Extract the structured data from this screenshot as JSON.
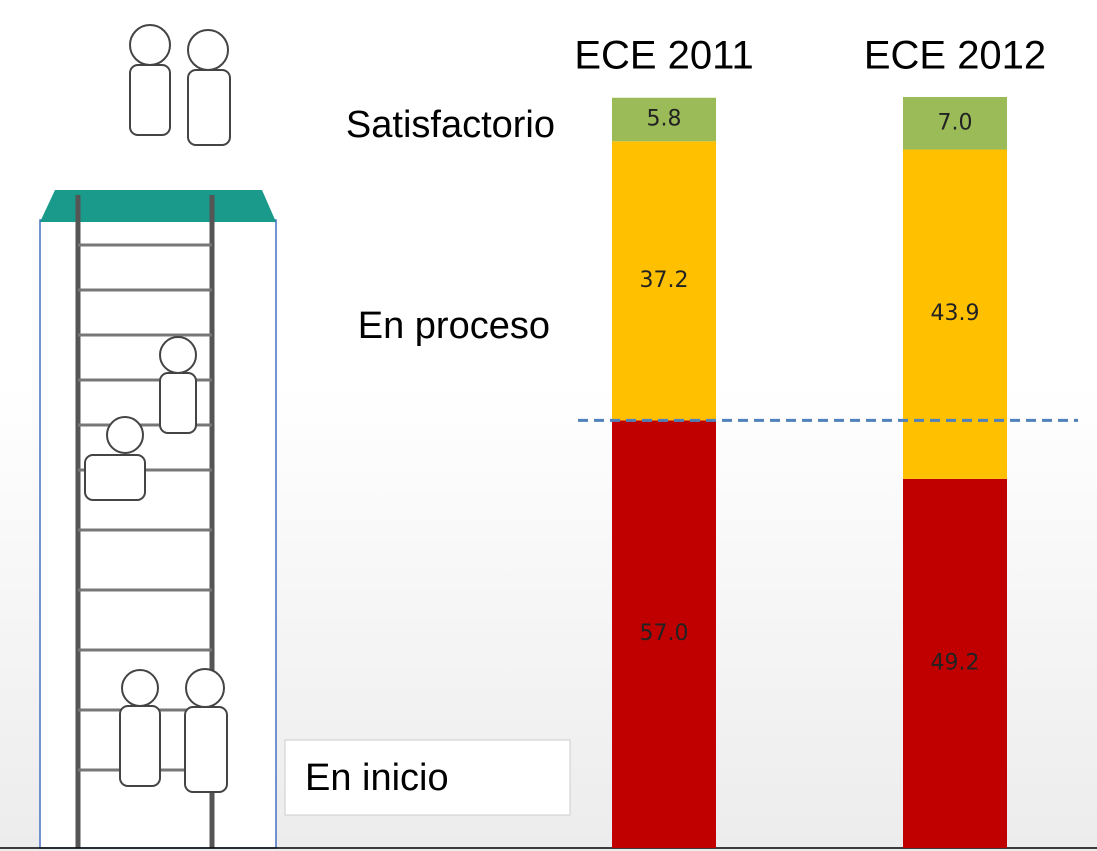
{
  "chart_data": {
    "type": "stacked_bar",
    "categories": [
      "ECE 2011",
      "ECE 2012"
    ],
    "series": [
      {
        "name": "En inicio",
        "color": "#c00000",
        "values": [
          57.0,
          49.2
        ],
        "value_labels": [
          "57.0",
          "49.2"
        ]
      },
      {
        "name": "En proceso",
        "color": "#ffc000",
        "values": [
          37.2,
          43.9
        ],
        "value_labels": [
          "37.2",
          "43.9"
        ]
      },
      {
        "name": "Satisfactorio",
        "color": "#9bbb59",
        "values": [
          5.8,
          7.0
        ],
        "value_labels": [
          "5.8",
          "7.0"
        ]
      }
    ]
  }
}
